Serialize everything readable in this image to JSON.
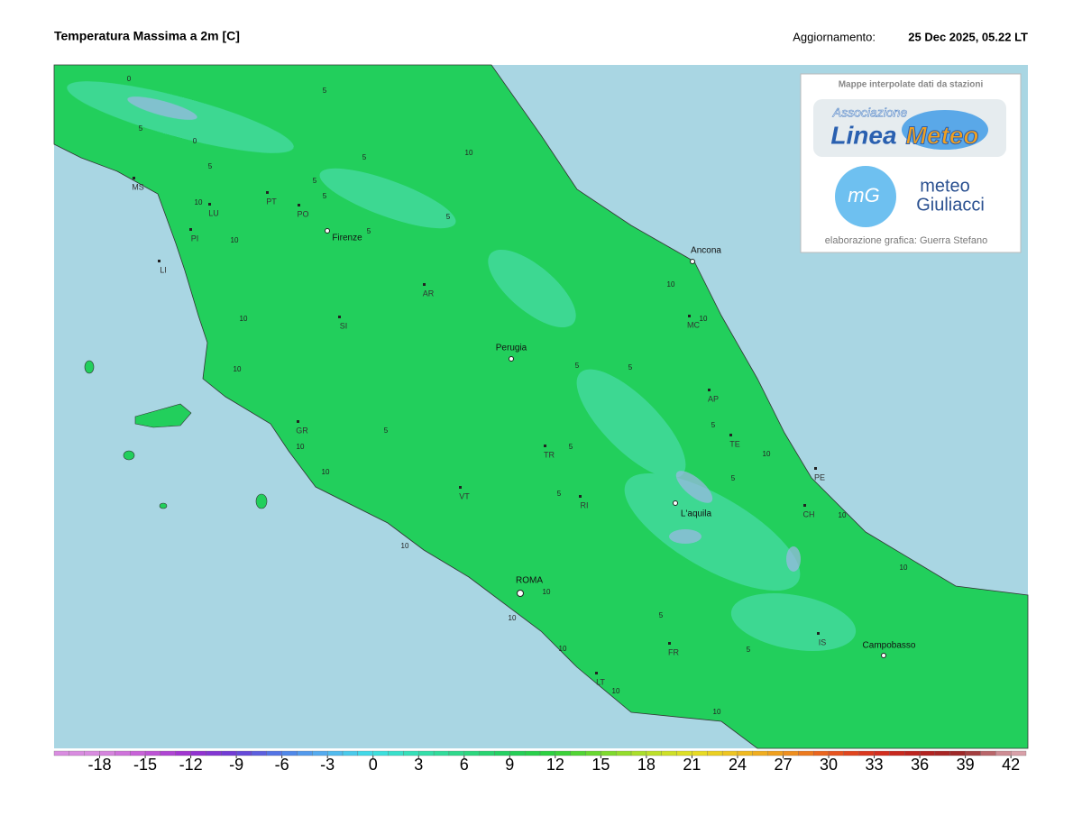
{
  "header": {
    "title": "Temperatura Massima a 2m [C]",
    "update_label": "Aggiornamento:",
    "update_time": "25 Dec 2025, 05.22 LT"
  },
  "logo": {
    "caption": "Mappe interpolate dati da stazioni",
    "association": "Associazione",
    "brand_a": "Linea",
    "brand_b": "Meteo",
    "mg_badge": "mG",
    "mg_line1": "meteo",
    "mg_line2": "Giuliacci",
    "credit": "elaborazione grafica: Guerra Stefano"
  },
  "map": {
    "land_color": "#22cf5c",
    "sea_color": "#a9d6e3",
    "cities": [
      "Firenze",
      "Ancona",
      "Perugia",
      "L'aquila",
      "ROMA",
      "Campobasso"
    ],
    "provinces": [
      "MS",
      "LU",
      "PI",
      "LI",
      "PT",
      "PO",
      "AR",
      "SI",
      "GR",
      "VT",
      "TR",
      "RI",
      "MC",
      "AP",
      "TE",
      "PE",
      "CH",
      "IS",
      "FR",
      "LT"
    ],
    "contour_labels": [
      0,
      0,
      5,
      5,
      5,
      5,
      5,
      10,
      5,
      10,
      10,
      10,
      10,
      10,
      5,
      10,
      10,
      5,
      5,
      5,
      5,
      10,
      5,
      5,
      10,
      10,
      10,
      5,
      5,
      10,
      10,
      10,
      10,
      10,
      10,
      5,
      5
    ]
  },
  "colorbar": {
    "lim": [
      -21,
      43
    ],
    "ticks": [
      -18,
      -15,
      -12,
      -9,
      -6,
      -3,
      0,
      3,
      6,
      9,
      12,
      15,
      18,
      21,
      24,
      27,
      30,
      33,
      36,
      39,
      42
    ],
    "colors": [
      "#d98ce0",
      "#c45ad6",
      "#9a2fd0",
      "#6b3fd6",
      "#4f7fe8",
      "#56b4f0",
      "#3ee0e6",
      "#34e0b0",
      "#2ed885",
      "#22cf5c",
      "#2ed13a",
      "#73d92e",
      "#b5e02a",
      "#e6e024",
      "#f0c020",
      "#f09a1e",
      "#ea5a1e",
      "#d8301e",
      "#b8201e",
      "#9a2a2a",
      "#d8a0a8"
    ]
  }
}
